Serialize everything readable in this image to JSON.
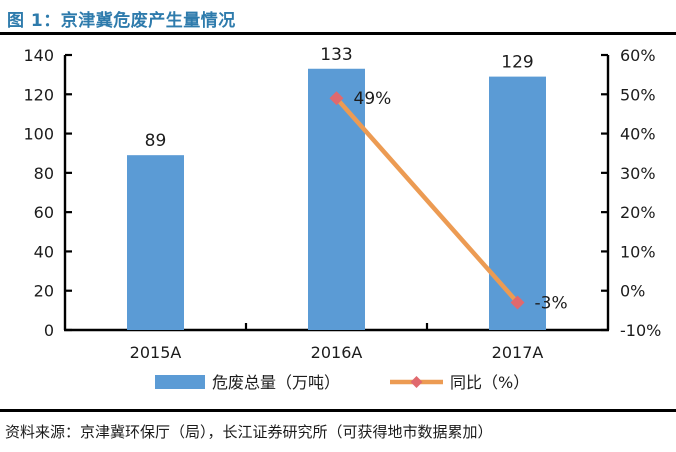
{
  "header": {
    "title": "图 1：京津冀危废产生量情况"
  },
  "chart_data": {
    "type": "bar",
    "subtype": "bar+line-dual-axis",
    "categories": [
      "2015A",
      "2016A",
      "2017A"
    ],
    "series": [
      {
        "name": "危废总量（万吨）",
        "type": "bar",
        "axis": "left",
        "values": [
          89,
          133,
          129
        ],
        "data_labels": [
          "89",
          "133",
          "129"
        ],
        "color": "#5B9BD5"
      },
      {
        "name": "同比（%）",
        "type": "line",
        "axis": "right",
        "values": [
          null,
          49,
          -3
        ],
        "data_labels": [
          null,
          "49%",
          "-3%"
        ],
        "color": "#EC9B53",
        "marker": "diamond",
        "marker_color": "#E0696E"
      }
    ],
    "left_axis": {
      "min": 0,
      "max": 140,
      "ticks": [
        0,
        20,
        40,
        60,
        80,
        100,
        120,
        140
      ],
      "tick_labels": [
        "0",
        "20",
        "40",
        "60",
        "80",
        "100",
        "120",
        "140"
      ]
    },
    "right_axis": {
      "min": -10,
      "max": 60,
      "ticks": [
        -10,
        0,
        10,
        20,
        30,
        40,
        50,
        60
      ],
      "tick_labels": [
        "-10%",
        "0%",
        "10%",
        "20%",
        "30%",
        "40%",
        "50%",
        "60%"
      ]
    },
    "grid": false,
    "legend_position": "bottom"
  },
  "footer": {
    "source": "资料来源：京津冀环保厅（局），长江证券研究所（可获得地市数据累加）"
  },
  "colors": {
    "title": "#2E7BAC",
    "axis": "#000000",
    "text": "#1c1c1c",
    "divider": "#000000",
    "background": "#FFFFFF"
  }
}
